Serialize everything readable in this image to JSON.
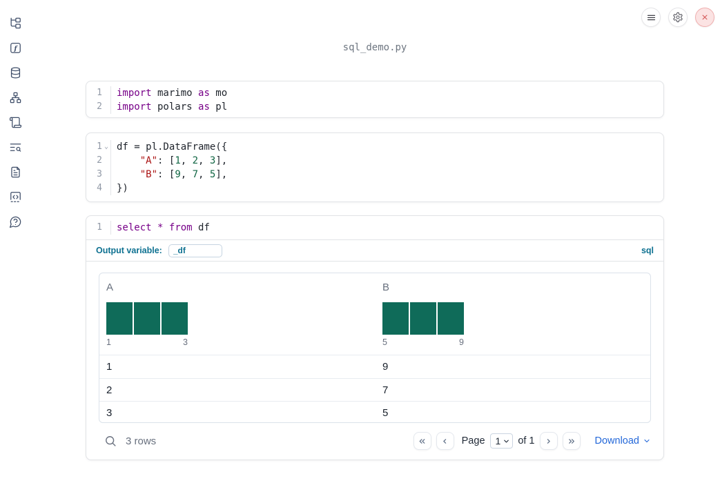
{
  "app_title": "sql_demo.py",
  "colors": {
    "keyword": "#770088",
    "string": "#aa1111",
    "number": "#116644",
    "histogram_bar": "#0f6b59",
    "sql_accent": "#0e7191",
    "download_link": "#2468d9",
    "close_red": "#d45a5a"
  },
  "sidebar": {
    "items": [
      {
        "name": "file-explorer"
      },
      {
        "name": "variables"
      },
      {
        "name": "datasources"
      },
      {
        "name": "dependencies"
      },
      {
        "name": "scratchpad"
      },
      {
        "name": "logs"
      },
      {
        "name": "documentation"
      },
      {
        "name": "snippets"
      },
      {
        "name": "help"
      }
    ],
    "glyphs": {
      "function_f": "f"
    }
  },
  "cells": {
    "imports": {
      "lines": [
        {
          "num": "1",
          "tokens": [
            [
              "kw",
              "import"
            ],
            [
              "pl",
              " marimo "
            ],
            [
              "kw",
              "as"
            ],
            [
              "pl",
              " mo"
            ]
          ]
        },
        {
          "num": "2",
          "tokens": [
            [
              "kw",
              "import"
            ],
            [
              "pl",
              " polars "
            ],
            [
              "kw",
              "as"
            ],
            [
              "pl",
              " pl"
            ]
          ]
        }
      ]
    },
    "dataframe": {
      "lines": [
        {
          "num": "1",
          "fold": true,
          "tokens": [
            [
              "pl",
              "df = pl.DataFrame({"
            ]
          ]
        },
        {
          "num": "2",
          "tokens": [
            [
              "pl",
              "    "
            ],
            [
              "str",
              "\"A\""
            ],
            [
              "pl",
              ": ["
            ],
            [
              "num",
              "1"
            ],
            [
              "pl",
              ", "
            ],
            [
              "num",
              "2"
            ],
            [
              "pl",
              ", "
            ],
            [
              "num",
              "3"
            ],
            [
              "pl",
              "],"
            ]
          ]
        },
        {
          "num": "3",
          "tokens": [
            [
              "pl",
              "    "
            ],
            [
              "str",
              "\"B\""
            ],
            [
              "pl",
              ": ["
            ],
            [
              "num",
              "9"
            ],
            [
              "pl",
              ", "
            ],
            [
              "num",
              "7"
            ],
            [
              "pl",
              ", "
            ],
            [
              "num",
              "5"
            ],
            [
              "pl",
              "],"
            ]
          ]
        },
        {
          "num": "4",
          "tokens": [
            [
              "pl",
              "})"
            ]
          ]
        }
      ]
    },
    "sql": {
      "lines": [
        {
          "num": "1",
          "tokens": [
            [
              "kw",
              "select"
            ],
            [
              "pl",
              " "
            ],
            [
              "kw",
              "*"
            ],
            [
              "pl",
              " "
            ],
            [
              "kw",
              "from"
            ],
            [
              "pl",
              " df"
            ]
          ]
        }
      ],
      "output_variable_label": "Output variable:",
      "output_variable_value": "_df",
      "language_badge": "sql"
    }
  },
  "table": {
    "columns": [
      {
        "label": "A",
        "hist": {
          "bars": [
            1,
            1,
            1
          ],
          "min_label": "1",
          "max_label": "3"
        }
      },
      {
        "label": "B",
        "hist": {
          "bars": [
            1,
            1,
            1
          ],
          "min_label": "5",
          "max_label": "9"
        }
      }
    ],
    "rows": [
      [
        "1",
        "9"
      ],
      [
        "2",
        "7"
      ],
      [
        "3",
        "5"
      ]
    ],
    "footer": {
      "row_count": "3 rows",
      "page_label": "Page",
      "page_value": "1",
      "of_label": "of 1",
      "download_label": "Download"
    }
  }
}
